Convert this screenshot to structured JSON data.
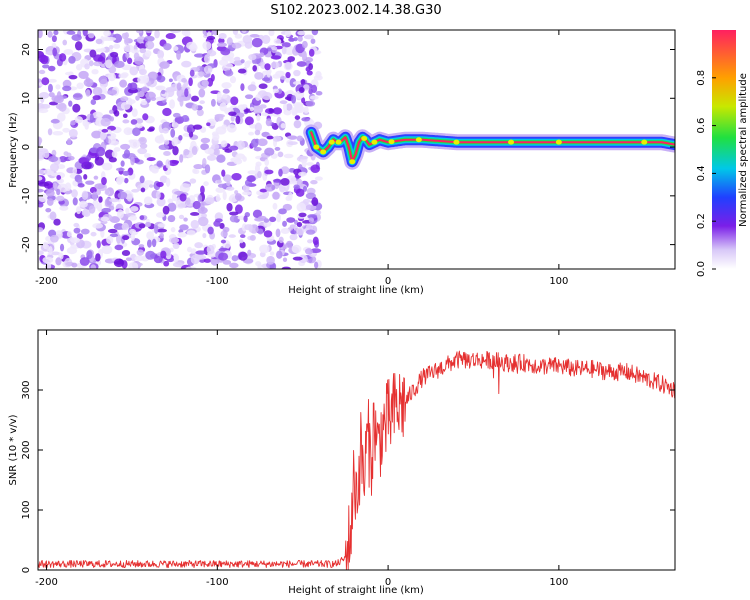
{
  "title": "S102.2023.002.14.38.G30",
  "chart_data": [
    {
      "type": "heatmap",
      "title": "",
      "xlabel": "Height of straight line (km)",
      "ylabel": "Frequency (Hz)",
      "xlim": [
        -205,
        168
      ],
      "ylim": [
        -25,
        24
      ],
      "xticks": [
        -200,
        -100,
        0,
        100
      ],
      "xtick_labels": [
        "-200",
        "-100",
        "0",
        "100"
      ],
      "yticks": [
        -20,
        -10,
        0,
        10,
        20
      ],
      "ytick_labels": [
        "-20",
        "-10",
        "0",
        "10",
        "20"
      ],
      "noise_region_x": [
        -205,
        -45
      ],
      "signal_ridge": {
        "x": [
          -45,
          -42,
          -38,
          -35,
          -32,
          -30,
          -28,
          -25,
          -23,
          -21,
          -19,
          -17,
          -15,
          -13,
          -11,
          -8,
          -5,
          0,
          10,
          20,
          40,
          60,
          80,
          100,
          120,
          140,
          160,
          168
        ],
        "frequency": [
          3,
          0,
          -1,
          0,
          1.5,
          1,
          1,
          2,
          0,
          -3,
          -1.5,
          1,
          2,
          1.5,
          0.5,
          1,
          1.5,
          1,
          1.5,
          1.5,
          1,
          1,
          1,
          1,
          1,
          1,
          1,
          0.5
        ]
      },
      "colorbar": {
        "label": "Normalized spectral amplitude",
        "range": [
          0,
          1
        ],
        "ticks": [
          0.0,
          0.2,
          0.4,
          0.6,
          0.8
        ],
        "tick_labels": [
          "0.0",
          "0.2",
          "0.4",
          "0.6",
          "0.8"
        ]
      },
      "grid": false
    },
    {
      "type": "line",
      "title": "",
      "xlabel": "Height of straight line (km)",
      "ylabel": "SNR (10 * v/v)",
      "xlim": [
        -205,
        168
      ],
      "ylim": [
        0,
        400
      ],
      "xticks": [
        -200,
        -100,
        0,
        100
      ],
      "xtick_labels": [
        "-200",
        "-100",
        "0",
        "100"
      ],
      "yticks": [
        0,
        100,
        200,
        300
      ],
      "ytick_labels": [
        "0",
        "100",
        "200",
        "300"
      ],
      "series": [
        {
          "name": "SNR",
          "color": "#e53030",
          "x": [
            -205,
            -150,
            -100,
            -50,
            -30,
            -25,
            -22,
            -20,
            -18,
            -16,
            -14,
            -12,
            -10,
            -8,
            -6,
            -4,
            -2,
            0,
            5,
            10,
            15,
            20,
            30,
            40,
            50,
            60,
            70,
            80,
            90,
            100,
            110,
            120,
            130,
            140,
            150,
            160,
            168
          ],
          "y": [
            10,
            10,
            10,
            10,
            10,
            20,
            60,
            150,
            130,
            200,
            150,
            230,
            180,
            250,
            200,
            230,
            240,
            250,
            270,
            280,
            300,
            320,
            335,
            350,
            350,
            350,
            345,
            345,
            340,
            340,
            335,
            335,
            330,
            330,
            320,
            310,
            300
          ]
        }
      ],
      "grid": false
    }
  ]
}
